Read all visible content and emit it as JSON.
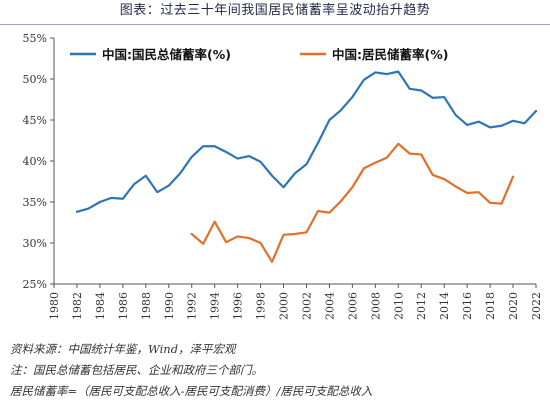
{
  "figure": {
    "title": "图表：过去三十年间我国居民储蓄率呈波动抬升趋势"
  },
  "notes": {
    "source": "资料来源：中国统计年鉴，Wind，泽平宏观",
    "note": "注：国民总储蓄包括居民、企业和政府三个部门。",
    "formula": "居民储蓄率=（居民可支配总收入-居民可支配消费）/居民可支配总收入"
  },
  "chart_data": {
    "type": "line",
    "title": "",
    "xlabel": "",
    "ylabel": "",
    "xlim": [
      1980,
      2022
    ],
    "ylim": [
      25,
      55
    ],
    "x_ticks": [
      1980,
      1982,
      1984,
      1986,
      1988,
      1990,
      1992,
      1994,
      1996,
      1998,
      2000,
      2002,
      2004,
      2006,
      2008,
      2010,
      2012,
      2014,
      2016,
      2018,
      2020,
      2022
    ],
    "x_tick_labels": [
      "1980",
      "1982",
      "1984",
      "1986",
      "1988",
      "1990",
      "1992",
      "1994",
      "1996",
      "1998",
      "2000",
      "2002",
      "2004",
      "2006",
      "2008",
      "2010",
      "2012",
      "2014",
      "2016",
      "2018",
      "2020",
      "2022"
    ],
    "y_ticks": [
      25,
      30,
      35,
      40,
      45,
      50,
      55
    ],
    "y_tick_labels": [
      "25%",
      "30%",
      "35%",
      "40%",
      "45%",
      "50%",
      "55%"
    ],
    "grid": false,
    "legend_position": "top-left",
    "series": [
      {
        "name": "中国:国民总储蓄率(%)",
        "color": "#2e75b6",
        "x": [
          1982,
          1983,
          1984,
          1985,
          1986,
          1987,
          1988,
          1989,
          1990,
          1991,
          1992,
          1993,
          1994,
          1995,
          1996,
          1997,
          1998,
          1999,
          2000,
          2001,
          2002,
          2003,
          2004,
          2005,
          2006,
          2007,
          2008,
          2009,
          2010,
          2011,
          2012,
          2013,
          2014,
          2015,
          2016,
          2017,
          2018,
          2019,
          2020,
          2021,
          2022
        ],
        "values": [
          33.8,
          34.2,
          35.0,
          35.5,
          35.4,
          37.2,
          38.2,
          36.2,
          37.0,
          38.5,
          40.5,
          41.8,
          41.8,
          41.1,
          40.3,
          40.6,
          39.9,
          38.2,
          36.8,
          38.5,
          39.6,
          42.2,
          45.0,
          46.2,
          47.8,
          49.9,
          50.8,
          50.6,
          50.9,
          48.8,
          48.6,
          47.7,
          47.8,
          45.6,
          44.4,
          44.8,
          44.1,
          44.3,
          44.9,
          44.6,
          46.1
        ]
      },
      {
        "name": "中国:居民储蓄率(%)",
        "color": "#e0702a",
        "x": [
          1992,
          1993,
          1994,
          1995,
          1996,
          1997,
          1998,
          1999,
          2000,
          2001,
          2002,
          2003,
          2004,
          2005,
          2006,
          2007,
          2008,
          2009,
          2010,
          2011,
          2012,
          2013,
          2014,
          2015,
          2016,
          2017,
          2018,
          2019,
          2020
        ],
        "values": [
          31.1,
          29.9,
          32.6,
          30.1,
          30.8,
          30.6,
          30.0,
          27.7,
          31.0,
          31.1,
          31.3,
          33.9,
          33.7,
          35.1,
          36.8,
          39.1,
          39.8,
          40.4,
          42.1,
          40.9,
          40.8,
          38.3,
          37.8,
          36.9,
          36.1,
          36.2,
          34.9,
          34.8,
          38.1
        ]
      }
    ]
  }
}
